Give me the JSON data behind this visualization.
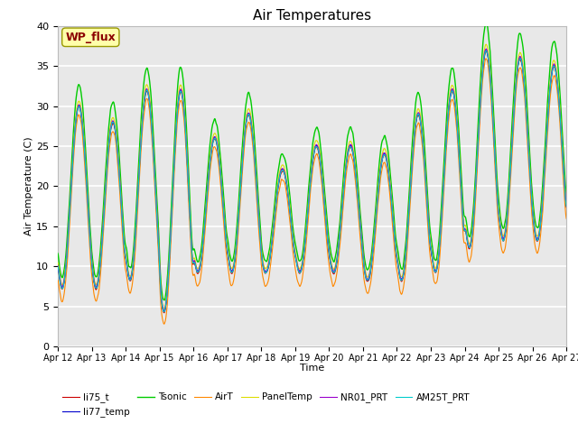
{
  "title": "Air Temperatures",
  "xlabel": "Time",
  "ylabel": "Air Temperature (C)",
  "ylim": [
    0,
    40
  ],
  "n_days": 15,
  "x_tick_labels": [
    "Apr 12",
    "Apr 13",
    "Apr 14",
    "Apr 15",
    "Apr 16",
    "Apr 17",
    "Apr 18",
    "Apr 19",
    "Apr 20",
    "Apr 21",
    "Apr 22",
    "Apr 23",
    "Apr 24",
    "Apr 25",
    "Apr 26",
    "Apr 27"
  ],
  "series": {
    "li75_t": {
      "color": "#cc0000",
      "lw": 0.8
    },
    "li77_temp": {
      "color": "#0000cc",
      "lw": 0.8
    },
    "Tsonic": {
      "color": "#00cc00",
      "lw": 1.0
    },
    "AirT": {
      "color": "#ff8800",
      "lw": 0.8
    },
    "PanelTemp": {
      "color": "#dddd00",
      "lw": 0.8
    },
    "NR01_PRT": {
      "color": "#9900cc",
      "lw": 0.8
    },
    "AM25T_PRT": {
      "color": "#00cccc",
      "lw": 0.8
    }
  },
  "annotation_text": "WP_flux",
  "bg_color": "#e8e8e8",
  "grid_color": "#ffffff",
  "title_fontsize": 11,
  "day_maxes_base": [
    30,
    28,
    32,
    32,
    26,
    29,
    22,
    25,
    25,
    24,
    29,
    32,
    37,
    36,
    35
  ],
  "day_mins_base": [
    7,
    7,
    8,
    4,
    9,
    9,
    9,
    9,
    9,
    8,
    8,
    9,
    12,
    13,
    13
  ]
}
